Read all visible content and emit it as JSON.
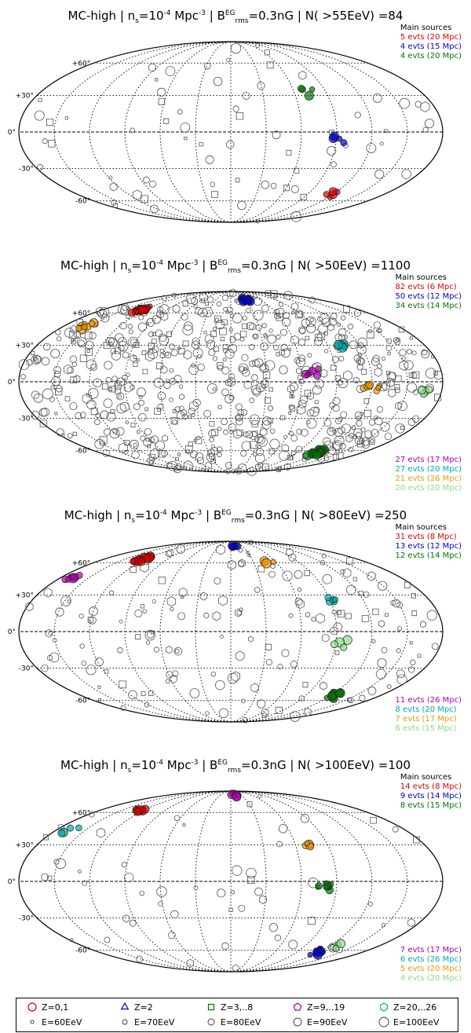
{
  "chart_data": [
    {
      "type": "scatter",
      "projection": "mollweide-sky-map",
      "title_parts": {
        "model": "MC-high",
        "density": "n",
        "density_sub": "s",
        "density_val": "=10",
        "density_exp": "-4",
        "density_unit": " Mpc",
        "unit_exp": "-3",
        "field": "B",
        "field_sup": "EG",
        "field_sub": "rms",
        "field_val": "=0.3nG",
        "count": "N( >55EeV) =84"
      },
      "lat_ticks": [
        "+60°",
        "+30°",
        "0°",
        "-30°",
        "-60°"
      ],
      "sources_header": "Main sources",
      "sources": [
        {
          "label": "5 evts (20 Mpc)",
          "color": "#dd0000"
        },
        {
          "label": "4 evts (15 Mpc)",
          "color": "#0000cc"
        },
        {
          "label": "4 evts (20 Mpc)",
          "color": "#007700"
        }
      ],
      "extra_sources": [],
      "clusters": [
        {
          "lon": -75,
          "lat": 33,
          "n": 4,
          "color": "#007700"
        },
        {
          "lon": -90,
          "lat": -6,
          "n": 4,
          "color": "#0000cc"
        },
        {
          "lon": -118,
          "lat": -53,
          "n": 5,
          "color": "#dd0000"
        }
      ],
      "background_events": 71,
      "seed": 11
    },
    {
      "type": "scatter",
      "projection": "mollweide-sky-map",
      "title_parts": {
        "model": "MC-high",
        "density": "n",
        "density_sub": "s",
        "density_val": "=10",
        "density_exp": "-4",
        "density_unit": " Mpc",
        "unit_exp": "-3",
        "field": "B",
        "field_sup": "EG",
        "field_sub": "rms",
        "field_val": "=0.3nG",
        "count": "N( >50EeV) =1100"
      },
      "lat_ticks": [
        "+60°",
        "+30°",
        "0°",
        "-30°",
        "-60°"
      ],
      "sources_header": "Main sources",
      "sources": [
        {
          "label": "82 evts (6 Mpc)",
          "color": "#dd0000"
        },
        {
          "label": "50 evts (12 Mpc)",
          "color": "#0000cc"
        },
        {
          "label": "34 evts (14 Mpc)",
          "color": "#007700"
        }
      ],
      "extra_sources": [
        {
          "label": "27 evts (17 Mpc)",
          "color": "#aa00aa"
        },
        {
          "label": "27 evts (20 Mpc)",
          "color": "#00aaaa"
        },
        {
          "label": "21 evts (26 Mpc)",
          "color": "#ee9900"
        },
        {
          "label": "20 evts (20 Mpc)",
          "color": "#88dd88"
        }
      ],
      "clusters": [
        {
          "lon": 125,
          "lat": 64,
          "n": 30,
          "color": "#dd0000"
        },
        {
          "lon": -30,
          "lat": 75,
          "n": 18,
          "color": "#0000cc"
        },
        {
          "lon": -70,
          "lat": 8,
          "n": 6,
          "color": "#aa00aa"
        },
        {
          "lon": 155,
          "lat": 47,
          "n": 8,
          "color": "#ee9900"
        },
        {
          "lon": -100,
          "lat": 30,
          "n": 9,
          "color": "#00aaaa"
        },
        {
          "lon": -120,
          "lat": -4,
          "n": 8,
          "color": "#ee9900"
        },
        {
          "lon": -118,
          "lat": -62,
          "n": 22,
          "color": "#007700"
        },
        {
          "lon": -165,
          "lat": -8,
          "n": 4,
          "color": "#88dd88"
        }
      ],
      "background_events": 650,
      "seed": 23
    },
    {
      "type": "scatter",
      "projection": "mollweide-sky-map",
      "title_parts": {
        "model": "MC-high",
        "density": "n",
        "density_sub": "s",
        "density_val": "=10",
        "density_exp": "-4",
        "density_unit": " Mpc",
        "unit_exp": "-3",
        "field": "B",
        "field_sup": "EG",
        "field_sub": "rms",
        "field_val": "=0.3nG",
        "count": "N( >80EeV) =250"
      },
      "lat_ticks": [
        "+60°",
        "+30°",
        "0°",
        "-30°",
        "-60°"
      ],
      "sources_header": "Main sources",
      "sources": [
        {
          "label": "31 evts (8 Mpc)",
          "color": "#dd0000"
        },
        {
          "label": "13 evts (12 Mpc)",
          "color": "#0000cc"
        },
        {
          "label": "12 evts (14 Mpc)",
          "color": "#007700"
        }
      ],
      "extra_sources": [
        {
          "label": "11 evts (26 Mpc)",
          "color": "#aa00aa"
        },
        {
          "label": "8 evts (20 Mpc)",
          "color": "#00aaaa"
        },
        {
          "label": "7 evts (17 Mpc)",
          "color": "#ee9900"
        },
        {
          "label": "6 evts (15 Mpc)",
          "color": "#88dd88"
        }
      ],
      "clusters": [
        {
          "lon": 125,
          "lat": 64,
          "n": 16,
          "color": "#dd0000"
        },
        {
          "lon": -10,
          "lat": 82,
          "n": 6,
          "color": "#0000cc"
        },
        {
          "lon": 170,
          "lat": 45,
          "n": 7,
          "color": "#aa00aa"
        },
        {
          "lon": -50,
          "lat": 62,
          "n": 4,
          "color": "#ee9900"
        },
        {
          "lon": -95,
          "lat": 28,
          "n": 5,
          "color": "#00aaaa"
        },
        {
          "lon": -125,
          "lat": -55,
          "n": 11,
          "color": "#007700"
        },
        {
          "lon": -95,
          "lat": -10,
          "n": 4,
          "color": "#88dd88"
        }
      ],
      "background_events": 170,
      "seed": 37
    },
    {
      "type": "scatter",
      "projection": "mollweide-sky-map",
      "title_parts": {
        "model": "MC-high",
        "density": "n",
        "density_sub": "s",
        "density_val": "=10",
        "density_exp": "-4",
        "density_unit": " Mpc",
        "unit_exp": "-3",
        "field": "B",
        "field_sup": "EG",
        "field_sub": "rms",
        "field_val": "=0.3nG",
        "count": "N( >100EeV) =100"
      },
      "lat_ticks": [
        "+60°",
        "+30°",
        "0°",
        "-30°",
        "-60°"
      ],
      "sources_header": "Main sources",
      "sources": [
        {
          "label": "14 evts (8 Mpc)",
          "color": "#dd0000"
        },
        {
          "label": "9 evts (14 Mpc)",
          "color": "#0000cc"
        },
        {
          "label": "8 evts (15 Mpc)",
          "color": "#007700"
        }
      ],
      "extra_sources": [
        {
          "label": "7 evts (17 Mpc)",
          "color": "#aa00aa"
        },
        {
          "label": "6 evts (26 Mpc)",
          "color": "#00aaaa"
        },
        {
          "label": "5 evts (20 Mpc)",
          "color": "#ee9900"
        },
        {
          "label": "4 evts (20 Mpc)",
          "color": "#88dd88"
        }
      ],
      "clusters": [
        {
          "lon": 125,
          "lat": 64,
          "n": 10,
          "color": "#dd0000"
        },
        {
          "lon": -10,
          "lat": 82,
          "n": 6,
          "color": "#aa00aa"
        },
        {
          "lon": 165,
          "lat": 42,
          "n": 4,
          "color": "#00aaaa"
        },
        {
          "lon": -70,
          "lat": 30,
          "n": 5,
          "color": "#ee9900"
        },
        {
          "lon": -80,
          "lat": -5,
          "n": 8,
          "color": "#007700"
        },
        {
          "lon": -120,
          "lat": -62,
          "n": 9,
          "color": "#0000cc"
        },
        {
          "lon": -130,
          "lat": -55,
          "n": 4,
          "color": "#88dd88"
        }
      ],
      "background_events": 55,
      "seed": 51
    }
  ],
  "legend": {
    "row1": [
      {
        "label": "Z=0,1",
        "color": "#dd0000",
        "shape": "circle"
      },
      {
        "label": "Z=2",
        "color": "#0000cc",
        "shape": "triangle"
      },
      {
        "label": "Z=3,..8",
        "color": "#007700",
        "shape": "square"
      },
      {
        "label": "Z=9,..19",
        "color": "#aa00aa",
        "shape": "pentagon"
      },
      {
        "label": "Z=20,..26",
        "color": "#00aaaa",
        "shape": "hexagon"
      }
    ],
    "row2": [
      {
        "label": "E=60EeV",
        "size": 2
      },
      {
        "label": "E=70EeV",
        "size": 3
      },
      {
        "label": "E=80EeV",
        "size": 4
      },
      {
        "label": "E=90EeV",
        "size": 5
      },
      {
        "label": "E=100EeV",
        "size": 6
      }
    ]
  }
}
